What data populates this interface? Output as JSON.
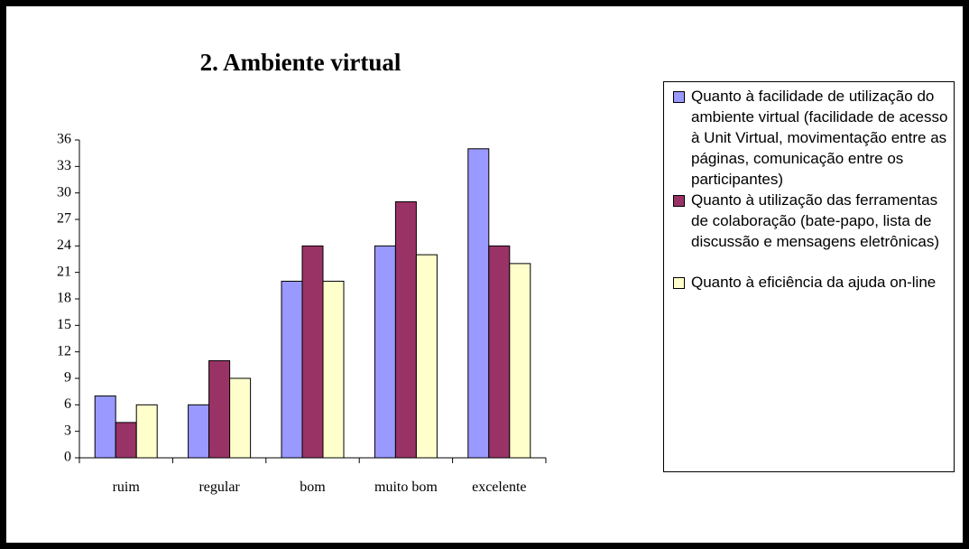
{
  "chart_data": {
    "type": "bar",
    "title": "2. Ambiente virtual",
    "categories": [
      "ruim",
      "regular",
      "bom",
      "muito bom",
      "excelente"
    ],
    "series": [
      {
        "name": "Quanto à facilidade de utilização do ambiente virtual (facilidade de acesso à Unit Virtual, movimentação entre as páginas, comunicação entre os participantes)",
        "color": "#9999ff",
        "values": [
          7,
          6,
          20,
          24,
          35
        ]
      },
      {
        "name": "Quanto à utilização das ferramentas de colaboração (bate-papo, lista de discussão e mensagens eletrônicas)",
        "color": "#993366",
        "values": [
          4,
          11,
          24,
          29,
          24
        ]
      },
      {
        "name": "Quanto à eficiência da ajuda on-line",
        "color": "#ffffcc",
        "values": [
          6,
          9,
          20,
          23,
          22
        ]
      }
    ],
    "ylim": [
      0,
      36
    ],
    "yticks": [
      0,
      3,
      6,
      9,
      12,
      15,
      18,
      21,
      24,
      27,
      30,
      33,
      36
    ]
  }
}
